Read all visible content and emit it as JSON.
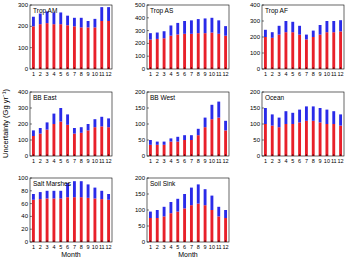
{
  "y_label": "Uncertainty (Gg yr⁻¹)",
  "chart_data": [
    {
      "type": "bar",
      "title": "Trop AM",
      "categories": [
        "1",
        "2",
        "3",
        "4",
        "5",
        "6",
        "7",
        "8",
        "9",
        "10",
        "11",
        "12"
      ],
      "stacked": true,
      "ylim": [
        0,
        300
      ],
      "yticks": [
        0,
        100,
        200,
        300
      ],
      "series": [
        {
          "color": "#e8202a",
          "values": [
            200,
            210,
            215,
            210,
            210,
            205,
            200,
            195,
            195,
            195,
            225,
            225
          ]
        },
        {
          "color": "#2a2ae8",
          "values": [
            45,
            50,
            55,
            55,
            55,
            45,
            40,
            45,
            30,
            40,
            65,
            65
          ]
        }
      ]
    },
    {
      "type": "bar",
      "title": "Trop AS",
      "categories": [
        "1",
        "2",
        "3",
        "4",
        "5",
        "6",
        "7",
        "8",
        "9",
        "10",
        "11",
        "12"
      ],
      "stacked": true,
      "ylim": [
        0,
        500
      ],
      "yticks": [
        0,
        100,
        200,
        300,
        400,
        500
      ],
      "series": [
        {
          "color": "#e8202a",
          "values": [
            230,
            235,
            240,
            260,
            270,
            275,
            275,
            280,
            280,
            285,
            275,
            260
          ]
        },
        {
          "color": "#2a2ae8",
          "values": [
            50,
            50,
            55,
            80,
            90,
            100,
            105,
            110,
            115,
            115,
            105,
            75
          ]
        }
      ]
    },
    {
      "type": "bar",
      "title": "Trop AF",
      "categories": [
        "1",
        "2",
        "3",
        "4",
        "5",
        "6",
        "7",
        "8",
        "9",
        "10",
        "11",
        "12"
      ],
      "stacked": true,
      "ylim": [
        0,
        400
      ],
      "yticks": [
        0,
        100,
        200,
        300,
        400
      ],
      "series": [
        {
          "color": "#e8202a",
          "values": [
            200,
            195,
            215,
            230,
            230,
            215,
            185,
            200,
            215,
            230,
            230,
            235
          ]
        },
        {
          "color": "#2a2ae8",
          "values": [
            45,
            35,
            55,
            70,
            65,
            55,
            30,
            40,
            60,
            70,
            70,
            70
          ]
        }
      ]
    },
    {
      "type": "bar",
      "title": "BB East",
      "categories": [
        "1",
        "2",
        "3",
        "4",
        "5",
        "6",
        "7",
        "8",
        "9",
        "10",
        "11",
        "12"
      ],
      "stacked": true,
      "ylim": [
        0,
        400
      ],
      "yticks": [
        0,
        100,
        200,
        300,
        400
      ],
      "series": [
        {
          "color": "#e8202a",
          "values": [
            125,
            140,
            165,
            200,
            215,
            195,
            140,
            145,
            160,
            180,
            185,
            180
          ]
        },
        {
          "color": "#2a2ae8",
          "values": [
            35,
            35,
            45,
            65,
            85,
            65,
            35,
            35,
            40,
            50,
            60,
            55
          ]
        }
      ]
    },
    {
      "type": "bar",
      "title": "BB West",
      "categories": [
        "1",
        "2",
        "3",
        "4",
        "5",
        "6",
        "7",
        "8",
        "9",
        "10",
        "11",
        "12"
      ],
      "stacked": true,
      "ylim": [
        0,
        200
      ],
      "yticks": [
        0,
        50,
        100,
        150,
        200
      ],
      "series": [
        {
          "color": "#e8202a",
          "values": [
            35,
            35,
            35,
            45,
            45,
            50,
            50,
            65,
            90,
            115,
            120,
            80
          ]
        },
        {
          "color": "#2a2ae8",
          "values": [
            15,
            10,
            10,
            10,
            15,
            15,
            15,
            20,
            30,
            45,
            50,
            30
          ]
        }
      ]
    },
    {
      "type": "bar",
      "title": "Ocean",
      "categories": [
        "1",
        "2",
        "3",
        "4",
        "5",
        "6",
        "7",
        "8",
        "9",
        "10",
        "11",
        "12"
      ],
      "stacked": true,
      "ylim": [
        0,
        200
      ],
      "yticks": [
        0,
        50,
        100,
        150,
        200
      ],
      "series": [
        {
          "color": "#e8202a",
          "values": [
            100,
            95,
            90,
            100,
            100,
            105,
            110,
            110,
            105,
            100,
            100,
            95
          ]
        },
        {
          "color": "#2a2ae8",
          "values": [
            50,
            35,
            30,
            40,
            35,
            40,
            45,
            45,
            45,
            45,
            40,
            35
          ]
        }
      ]
    },
    {
      "type": "bar",
      "title": "Salt Marshes",
      "x_label": "Month",
      "categories": [
        "1",
        "2",
        "3",
        "4",
        "5",
        "6",
        "7",
        "8",
        "9",
        "10",
        "11",
        "12"
      ],
      "stacked": true,
      "ylim": [
        0,
        100
      ],
      "yticks": [
        0,
        20,
        40,
        60,
        80,
        100
      ],
      "series": [
        {
          "color": "#e8202a",
          "values": [
            66,
            67,
            68,
            68,
            68,
            70,
            70,
            70,
            69,
            68,
            67,
            66
          ]
        },
        {
          "color": "#2a2ae8",
          "values": [
            9,
            11,
            12,
            12,
            12,
            22,
            25,
            25,
            21,
            17,
            13,
            9
          ]
        }
      ]
    },
    {
      "type": "bar",
      "title": "Soil Sink",
      "x_label": "Month",
      "categories": [
        "1",
        "2",
        "3",
        "4",
        "5",
        "6",
        "7",
        "8",
        "9",
        "10",
        "11",
        "12"
      ],
      "stacked": true,
      "ylim": [
        0,
        200
      ],
      "yticks": [
        0,
        50,
        100,
        150,
        200
      ],
      "series": [
        {
          "color": "#e8202a",
          "values": [
            75,
            75,
            80,
            90,
            95,
            105,
            115,
            120,
            115,
            100,
            80,
            75
          ]
        },
        {
          "color": "#2a2ae8",
          "values": [
            20,
            25,
            30,
            35,
            40,
            45,
            55,
            60,
            50,
            45,
            30,
            25
          ]
        }
      ]
    }
  ]
}
